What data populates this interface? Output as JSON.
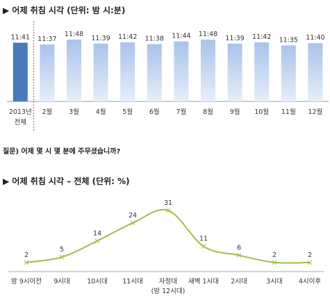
{
  "headings": {
    "chart1_title": "▶ 어제 취침 시각 (단위: 밤 시:분)",
    "question": "질문) 어제 몇 시 몇 분에 주무셨습니까?",
    "chart2_title": "▶ 어제 취침 시각 – 전체 (단위: %)"
  },
  "colors": {
    "highlight_bar": "#4a7ab8",
    "bar_top": "#a9c3ea",
    "bar_bottom": "#e6eefa",
    "line": "#9cbf4a",
    "divider": "#c0504d"
  },
  "chart_data": [
    {
      "type": "bar",
      "categories": [
        [
          "2013년",
          "전체"
        ],
        [
          "2월"
        ],
        [
          "3월"
        ],
        [
          "4월"
        ],
        [
          "5월"
        ],
        [
          "6월"
        ],
        [
          "7월"
        ],
        [
          "8월"
        ],
        [
          "9월"
        ],
        [
          "10월"
        ],
        [
          "11월"
        ],
        [
          "12월"
        ]
      ],
      "labels": [
        "11:41",
        "11:37",
        "11:48",
        "11:39",
        "11:42",
        "11:38",
        "11:44",
        "11:48",
        "11:39",
        "11:42",
        "11:35",
        "11:40"
      ],
      "values": [
        41,
        37,
        48,
        39,
        42,
        38,
        44,
        48,
        39,
        42,
        35,
        40
      ],
      "unit": "minutes past 11 PM",
      "highlight_index": 0
    },
    {
      "type": "line",
      "categories": [
        [
          "밤 9시이전"
        ],
        [
          "9시대"
        ],
        [
          "10시대"
        ],
        [
          "11시대"
        ],
        [
          "자정대",
          "(밤 12시대)"
        ],
        [
          "새벽 1시대"
        ],
        [
          "2시대"
        ],
        [
          "3시대"
        ],
        [
          "4시이후"
        ]
      ],
      "values": [
        2,
        5,
        14,
        24,
        31,
        11,
        6,
        2,
        2
      ],
      "ylim": [
        0,
        35
      ]
    }
  ]
}
